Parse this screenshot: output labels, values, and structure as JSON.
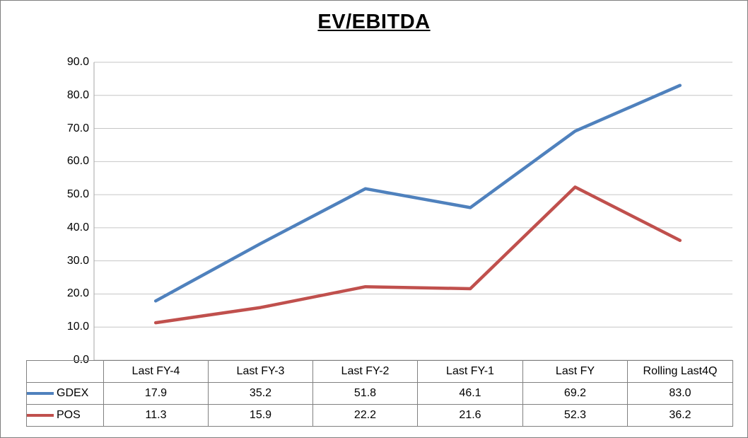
{
  "chart_data": {
    "type": "line",
    "title": "EV/EBITDA",
    "categories": [
      "Last FY-4",
      "Last FY-3",
      "Last FY-2",
      "Last FY-1",
      "Last FY",
      "Rolling Last4Q"
    ],
    "series": [
      {
        "name": "GDEX",
        "color": "#4F81BD",
        "values": [
          17.9,
          35.2,
          51.8,
          46.1,
          69.2,
          83.0
        ]
      },
      {
        "name": "POS",
        "color": "#C0504D",
        "values": [
          11.3,
          15.9,
          22.2,
          21.6,
          52.3,
          36.2
        ]
      }
    ],
    "ylim": [
      0,
      90
    ],
    "ytick_step": 10,
    "ytick_labels": [
      "0.0",
      "10.0",
      "20.0",
      "30.0",
      "40.0",
      "50.0",
      "60.0",
      "70.0",
      "80.0",
      "90.0"
    ],
    "grid": true,
    "legend_position": "table-left",
    "value_decimals": 1
  },
  "colors": {
    "gridline": "#C6C6C6",
    "axis": "#A6A6A6",
    "table_border": "#808080",
    "text": "#000000",
    "background": "#FFFFFF",
    "outer_border": "#7F7F7F"
  }
}
